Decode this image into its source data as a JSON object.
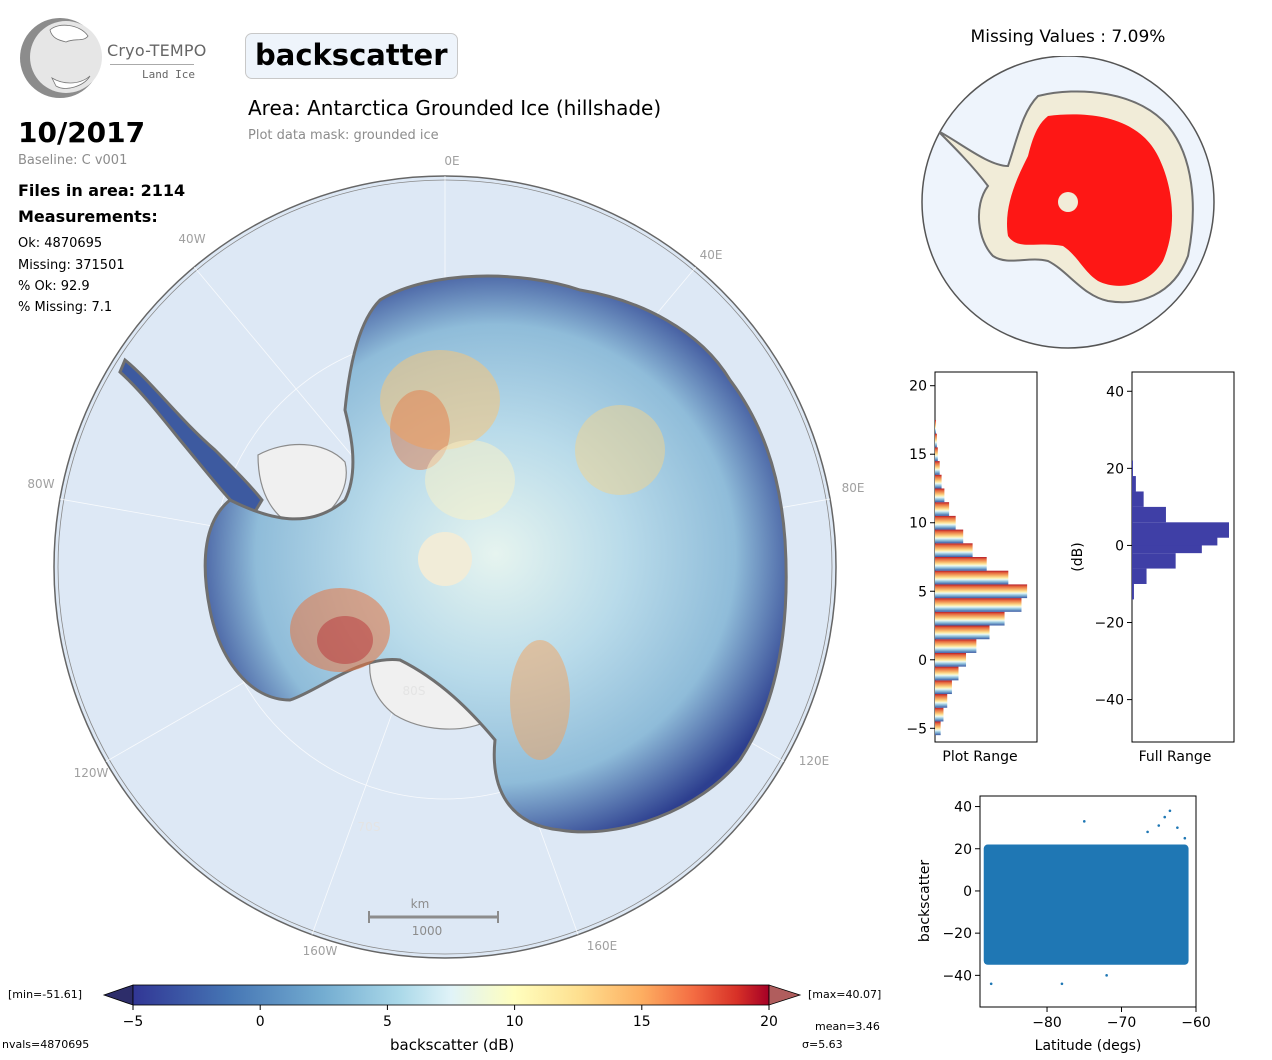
{
  "logo": {
    "name": "Cryo-TEMPO",
    "subtitle": "Land Ice"
  },
  "parameter": "backscatter",
  "area_title": "Area: Antarctica Grounded Ice (hillshade)",
  "mask_note": "Plot data mask: grounded ice",
  "date": "10/2017",
  "baseline": "Baseline: C v001",
  "files_in_area": "Files in area: 2114",
  "measurements_heading": "Measurements:",
  "stats": [
    "Ok: 4870695",
    "Missing: 371501",
    "% Ok: 92.9",
    "% Missing: 7.1"
  ],
  "map": {
    "lon_labels": [
      "0E",
      "40E",
      "80E",
      "120E",
      "160E",
      "160W",
      "120W",
      "80W",
      "40W"
    ],
    "lat_labels": [
      "80S",
      "70S"
    ],
    "scale_unit": "km",
    "scale_value": "1000"
  },
  "missing_title": "Missing Values : 7.09%",
  "colorbar": {
    "label": "backscatter (dB)",
    "min_text": "[min=-51.61]",
    "max_text": "[max=40.07]",
    "ticks": [
      "−5",
      "0",
      "5",
      "10",
      "15",
      "20"
    ],
    "nvals": "nvals=4870695",
    "mean": "mean=3.46",
    "sigma": "σ=5.63"
  },
  "colors": {
    "accent": "#1f77b4",
    "missing": "#ff0000",
    "hist_full": "#3f3fa6",
    "ocean": "#dde8f5"
  },
  "chart_data": [
    {
      "type": "bar",
      "title": "",
      "xlabel": "Plot Range",
      "ylabel": "",
      "orientation": "horizontal",
      "ylim": [
        -6,
        21
      ],
      "yticks": [
        "−5",
        "0",
        "5",
        "10",
        "15",
        "20"
      ],
      "x": [
        -5,
        -4,
        -3,
        -2,
        -1,
        0,
        1,
        2,
        3,
        4,
        5,
        6,
        7,
        8,
        9,
        10,
        11,
        12,
        13,
        14,
        15,
        16,
        17
      ],
      "values": [
        0.06,
        0.09,
        0.13,
        0.18,
        0.25,
        0.33,
        0.44,
        0.58,
        0.74,
        0.92,
        0.98,
        0.78,
        0.55,
        0.4,
        0.3,
        0.22,
        0.15,
        0.1,
        0.07,
        0.05,
        0.03,
        0.02,
        0.01
      ]
    },
    {
      "type": "bar",
      "title": "",
      "xlabel": "Full Range",
      "ylabel": "(dB)",
      "orientation": "horizontal",
      "ylim": [
        -51,
        45
      ],
      "yticks": [
        "−40",
        "−20",
        "0",
        "20",
        "40"
      ],
      "x": [
        -12,
        -8,
        -4,
        0,
        2,
        4,
        8,
        12,
        16,
        20
      ],
      "values": [
        0.02,
        0.15,
        0.45,
        0.72,
        0.88,
        1.0,
        0.35,
        0.12,
        0.04,
        0.01
      ]
    },
    {
      "type": "scatter",
      "title": "",
      "xlabel": "Latitude (degs)",
      "ylabel": "backscatter",
      "xlim": [
        -89,
        -60
      ],
      "ylim": [
        -55,
        45
      ],
      "xticks": [
        "−80",
        "−70",
        "−60"
      ],
      "yticks": [
        "−40",
        "−20",
        "0",
        "20",
        "40"
      ],
      "x_range": [
        -88.5,
        -61.0
      ],
      "y_band": [
        -35,
        22
      ],
      "outliers": [
        [
          -63.5,
          38
        ],
        [
          -64.2,
          35
        ],
        [
          -65,
          31
        ],
        [
          -62.5,
          30
        ],
        [
          -75,
          33
        ],
        [
          -66.5,
          28
        ],
        [
          -61.5,
          25
        ],
        [
          -87.5,
          -44
        ],
        [
          -78,
          -44
        ],
        [
          -72,
          -40
        ]
      ]
    }
  ]
}
